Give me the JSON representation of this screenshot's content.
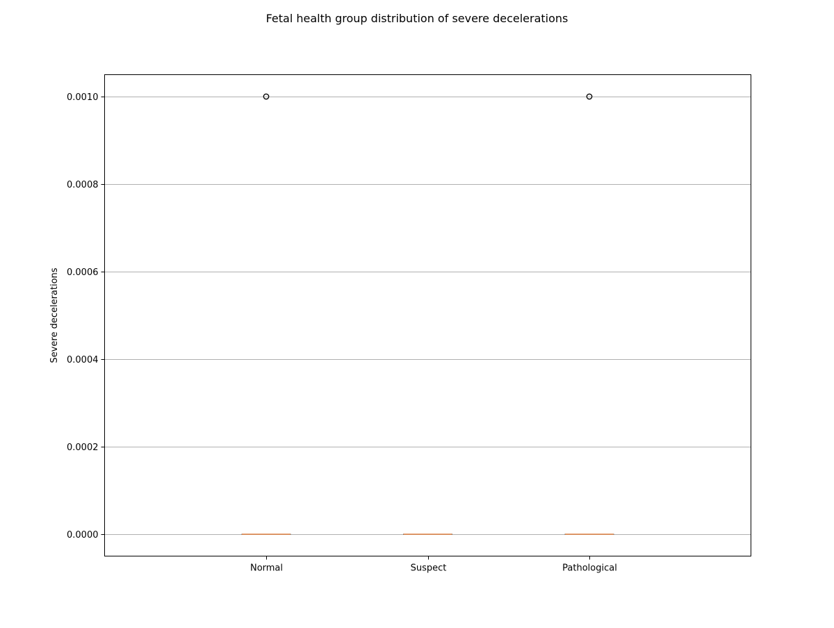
{
  "chart_data": {
    "type": "box",
    "title": "Fetal health group distribution of severe decelerations",
    "xlabel": "",
    "ylabel": "Severe decelerations",
    "categories": [
      "Normal",
      "Suspect",
      "Pathological"
    ],
    "ylim": [
      -5e-05,
      0.00105
    ],
    "yticks": [
      0.0,
      0.0002,
      0.0004,
      0.0006,
      0.0008,
      0.001
    ],
    "ytick_labels": [
      "0.0000",
      "0.0002",
      "0.0004",
      "0.0006",
      "0.0008",
      "0.0010"
    ],
    "grid": "y",
    "boxes": [
      {
        "category": "Normal",
        "min": 0.0,
        "q1": 0.0,
        "median": 0.0,
        "q3": 0.0,
        "max": 0.0,
        "outliers": [
          0.001
        ]
      },
      {
        "category": "Suspect",
        "min": 0.0,
        "q1": 0.0,
        "median": 0.0,
        "q3": 0.0,
        "max": 0.0,
        "outliers": []
      },
      {
        "category": "Pathological",
        "min": 0.0,
        "q1": 0.0,
        "median": 0.0,
        "q3": 0.0,
        "max": 0.0,
        "outliers": [
          0.001
        ]
      }
    ],
    "colors": {
      "median": "#e08040",
      "box": "#000000",
      "grid": "#b0b0b0",
      "outlier": "#000000"
    }
  }
}
